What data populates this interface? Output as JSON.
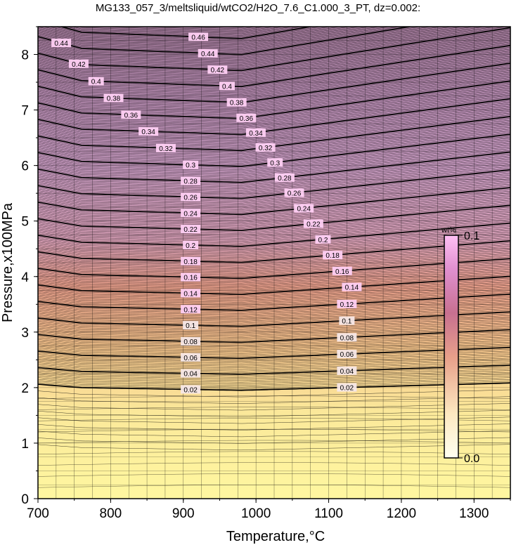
{
  "chart_data": {
    "type": "heatmap",
    "title": "MG133_057_3/meltsliquid/wtCO2/H2O_7.6_C1.000_3_PT, dz=0.002:",
    "xlabel": "Temperature,°C",
    "ylabel": "Pressure,x100MPa",
    "xlim": [
      700,
      1350
    ],
    "ylim": [
      0,
      8.5
    ],
    "x_ticks": [
      "700",
      "800",
      "900",
      "1000",
      "1100",
      "1200",
      "1300"
    ],
    "y_ticks": [
      "0",
      "1",
      "2",
      "3",
      "4",
      "5",
      "6",
      "7",
      "8"
    ],
    "grid": true,
    "contour_interval": 0.002,
    "labeled_contours": [
      "0.02",
      "0.04",
      "0.06",
      "0.08",
      "0.1",
      "0.12",
      "0.14",
      "0.16",
      "0.18",
      "0.2",
      "0.22",
      "0.24",
      "0.26",
      "0.28",
      "0.3",
      "0.32",
      "0.34",
      "0.36",
      "0.38",
      "0.4",
      "0.42",
      "0.44",
      "0.46"
    ],
    "colorbar": {
      "unit": "wt%",
      "min_label": "0.0",
      "max_label": "0.1",
      "colors": [
        "#fff599",
        "#f5c08a",
        "#e8908e",
        "#d89cc0",
        "#ffb8f0"
      ],
      "placement": "right-inside"
    },
    "colors": {
      "low": "#fff599",
      "mid": "#e8908e",
      "high": "#ffb8f0",
      "contour": "#000000"
    }
  }
}
